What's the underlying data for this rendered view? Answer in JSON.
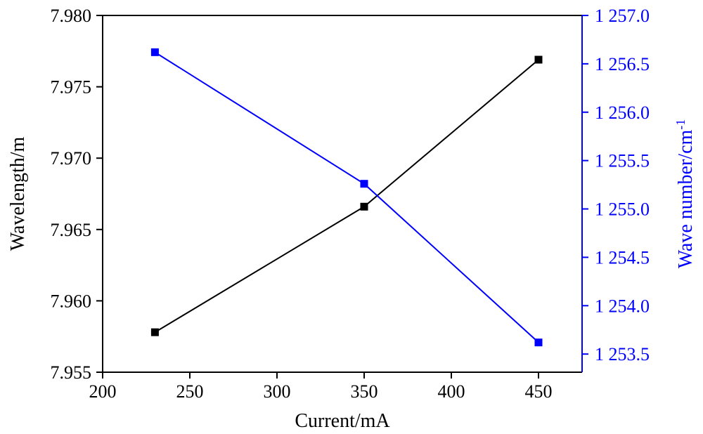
{
  "chart_data": {
    "type": "line",
    "xlabel": "Current/mA",
    "ylabel": "Wavelength/m",
    "y2label": "Wave number/cm",
    "y2label_superscript": "-1",
    "xlim": [
      200,
      475
    ],
    "ylim": [
      7.955,
      7.98
    ],
    "y2lim": [
      1253.3125,
      1257.0
    ],
    "x_ticks": [
      {
        "value": 200,
        "label": "200"
      },
      {
        "value": 250,
        "label": "250"
      },
      {
        "value": 300,
        "label": "300"
      },
      {
        "value": 350,
        "label": "350"
      },
      {
        "value": 400,
        "label": "400"
      },
      {
        "value": 450,
        "label": "450"
      }
    ],
    "y_ticks": [
      {
        "value": 7.955,
        "label": "7.955"
      },
      {
        "value": 7.96,
        "label": "7.960"
      },
      {
        "value": 7.965,
        "label": "7.965"
      },
      {
        "value": 7.97,
        "label": "7.970"
      },
      {
        "value": 7.975,
        "label": "7.975"
      },
      {
        "value": 7.98,
        "label": "7.980"
      }
    ],
    "y2_ticks": [
      {
        "value": 1253.5,
        "label": "1 253.5"
      },
      {
        "value": 1254.0,
        "label": "1 254.0"
      },
      {
        "value": 1254.5,
        "label": "1 254.5"
      },
      {
        "value": 1255.0,
        "label": "1 255.0"
      },
      {
        "value": 1255.5,
        "label": "1 255.5"
      },
      {
        "value": 1256.0,
        "label": "1 256.0"
      },
      {
        "value": 1256.5,
        "label": "1 256.5"
      },
      {
        "value": 1257.0,
        "label": "1 257.0"
      }
    ],
    "series": [
      {
        "axis": "left",
        "color": "#000000",
        "marker": "square",
        "x": [
          230,
          350,
          450
        ],
        "values": [
          7.9578,
          7.9666,
          7.9769
        ]
      },
      {
        "axis": "right",
        "color": "#0000ff",
        "marker": "square",
        "x": [
          230,
          350,
          450
        ],
        "values": [
          1256.62,
          1255.26,
          1253.62
        ]
      }
    ],
    "grid": false,
    "legend": "none",
    "colors": {
      "left_axis": "#000000",
      "right_axis": "#0000ff"
    }
  }
}
